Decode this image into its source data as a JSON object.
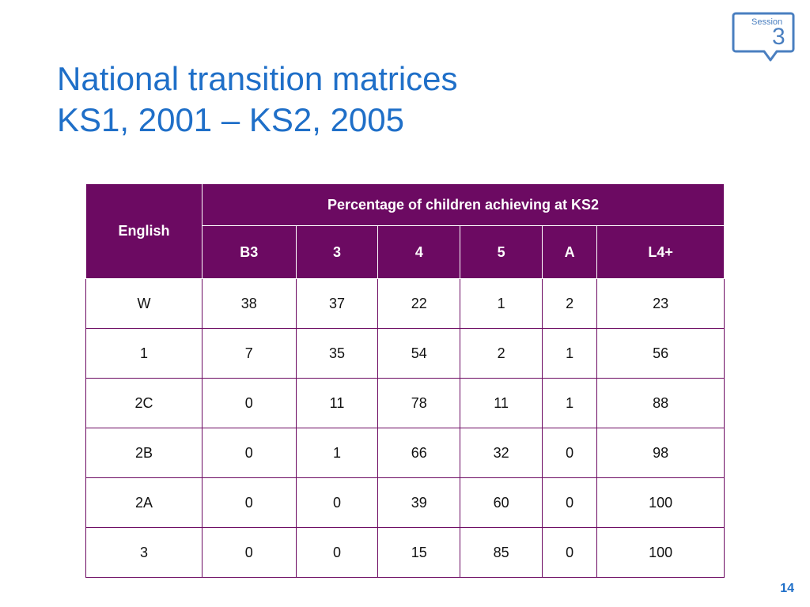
{
  "title": {
    "line1": "National transition matrices",
    "line2": "KS1, 2001 – KS2, 2005"
  },
  "badge": {
    "label": "Session",
    "number": "3",
    "color": "#4a7fc0"
  },
  "table": {
    "row_header_label": "English",
    "group_header": "Percentage of children achieving at KS2",
    "columns": [
      "B3",
      "3",
      "4",
      "5",
      "A",
      "L4+"
    ],
    "rows": [
      {
        "label": "W",
        "values": [
          "38",
          "37",
          "22",
          "1",
          "2",
          "23"
        ]
      },
      {
        "label": "1",
        "values": [
          "7",
          "35",
          "54",
          "2",
          "1",
          "56"
        ]
      },
      {
        "label": "2C",
        "values": [
          "0",
          "11",
          "78",
          "11",
          "1",
          "88"
        ]
      },
      {
        "label": "2B",
        "values": [
          "0",
          "1",
          "66",
          "32",
          "0",
          "98"
        ]
      },
      {
        "label": "2A",
        "values": [
          "0",
          "0",
          "39",
          "60",
          "0",
          "100"
        ]
      },
      {
        "label": "3",
        "values": [
          "0",
          "0",
          "15",
          "85",
          "0",
          "100"
        ]
      }
    ],
    "header_color": "#6c0a62"
  },
  "footer": {
    "page_number": "14"
  },
  "colors": {
    "title": "#1f6fc8",
    "accent": "#6c0a62"
  }
}
